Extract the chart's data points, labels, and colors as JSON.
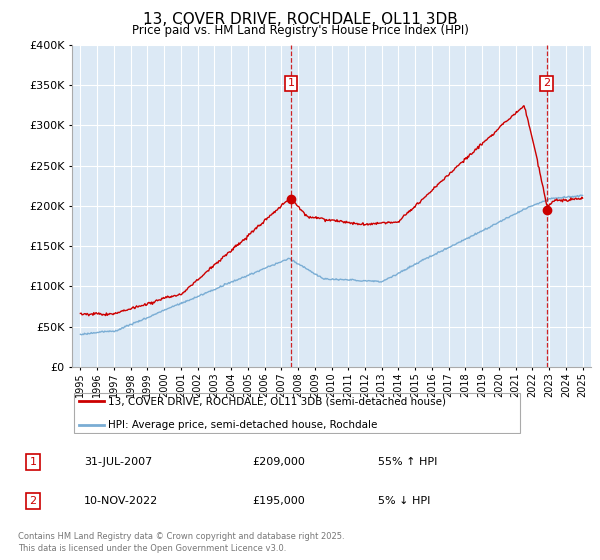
{
  "title": "13, COVER DRIVE, ROCHDALE, OL11 3DB",
  "subtitle": "Price paid vs. HM Land Registry's House Price Index (HPI)",
  "legend_line1": "13, COVER DRIVE, ROCHDALE, OL11 3DB (semi-detached house)",
  "legend_line2": "HPI: Average price, semi-detached house, Rochdale",
  "footer": "Contains HM Land Registry data © Crown copyright and database right 2025.\nThis data is licensed under the Open Government Licence v3.0.",
  "sale1_date": "31-JUL-2007",
  "sale1_price": "£209,000",
  "sale1_hpi": "55% ↑ HPI",
  "sale2_date": "10-NOV-2022",
  "sale2_price": "£195,000",
  "sale2_hpi": "5% ↓ HPI",
  "sale1_year": 2007.58,
  "sale2_year": 2022.86,
  "sale1_value": 209000,
  "sale2_value": 195000,
  "ylim": [
    0,
    400000
  ],
  "xlim": [
    1994.5,
    2025.5
  ],
  "red_color": "#cc0000",
  "blue_color": "#7aadd4",
  "dashed_color": "#cc0000",
  "background_color": "#ffffff",
  "plot_bg_color": "#dce9f5",
  "grid_color": "#ffffff"
}
